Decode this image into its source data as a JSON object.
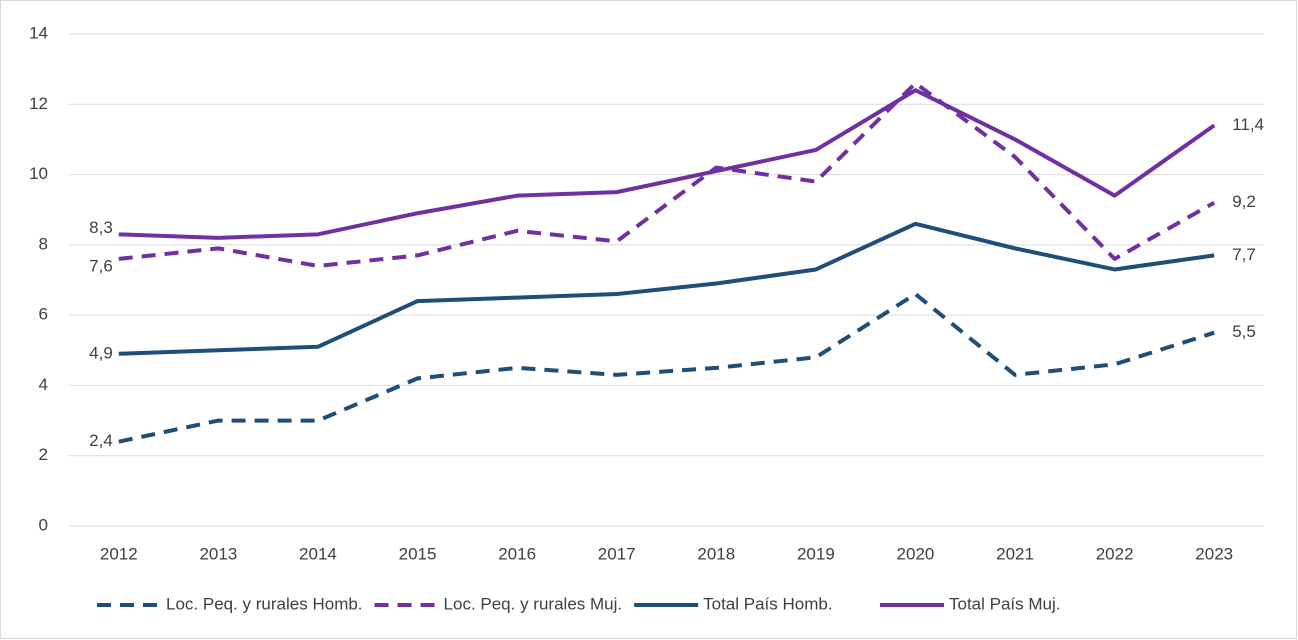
{
  "chart_data": {
    "type": "line",
    "categories": [
      "2012",
      "2013",
      "2014",
      "2015",
      "2016",
      "2017",
      "2018",
      "2019",
      "2020",
      "2021",
      "2022",
      "2023"
    ],
    "series": [
      {
        "name": "Loc. Peq. y rurales Homb.",
        "color": "#1f4e79",
        "dashed": true,
        "values": [
          2.4,
          3.0,
          3.0,
          4.2,
          4.5,
          4.3,
          4.5,
          4.8,
          6.6,
          4.3,
          4.6,
          5.5
        ],
        "value_labels": [
          "2,4",
          null,
          null,
          null,
          null,
          null,
          null,
          null,
          null,
          null,
          null,
          "5,5"
        ]
      },
      {
        "name": "Loc. Peq. y rurales Muj.",
        "color": "#7030a0",
        "dashed": true,
        "values": [
          7.6,
          7.9,
          7.4,
          7.7,
          8.4,
          8.1,
          10.2,
          9.8,
          12.6,
          10.5,
          7.6,
          9.2
        ],
        "value_labels": [
          "7,6",
          null,
          null,
          null,
          null,
          null,
          null,
          null,
          null,
          null,
          null,
          "9,2"
        ]
      },
      {
        "name": "Total País Homb.",
        "color": "#1f4e79",
        "dashed": false,
        "values": [
          4.9,
          5.0,
          5.1,
          6.4,
          6.5,
          6.6,
          6.9,
          7.3,
          8.6,
          7.9,
          7.3,
          7.7
        ],
        "value_labels": [
          "4,9",
          null,
          null,
          null,
          null,
          null,
          null,
          null,
          null,
          null,
          null,
          "7,7"
        ]
      },
      {
        "name": "Total País Muj.",
        "color": "#7030a0",
        "dashed": false,
        "values": [
          8.3,
          8.2,
          8.3,
          8.9,
          9.4,
          9.5,
          10.1,
          10.7,
          12.4,
          11.0,
          9.4,
          11.4
        ],
        "value_labels": [
          "8,3",
          null,
          null,
          null,
          null,
          null,
          null,
          null,
          null,
          null,
          null,
          "11,4"
        ]
      }
    ],
    "ylim": [
      0,
      14
    ],
    "yticks": [
      0,
      2,
      4,
      6,
      8,
      10,
      12,
      14
    ],
    "grid": true,
    "legend": "bottom"
  }
}
